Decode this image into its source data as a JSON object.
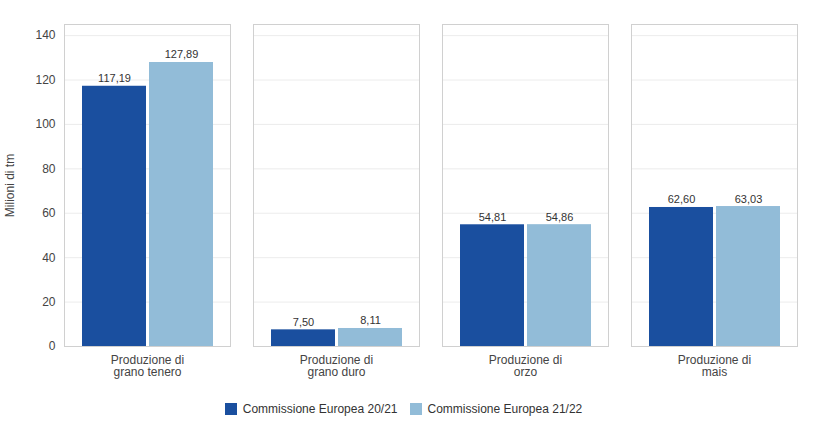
{
  "chart_data": {
    "type": "bar",
    "categories": [
      "Produzione di\ngrano tenero",
      "Produzione di\ngrano duro",
      "Produzione di\norzo",
      "Produzione di\nmais"
    ],
    "series": [
      {
        "name": "Commissione Europea 20/21",
        "color": "#1a4f9f",
        "values": [
          117.19,
          7.5,
          54.81,
          62.6
        ],
        "value_labels": [
          "117,19",
          "7,50",
          "54,81",
          "62,60"
        ]
      },
      {
        "name": "Commissione Europea 21/22",
        "color": "#92bcd8",
        "values": [
          127.89,
          8.11,
          54.86,
          63.03
        ],
        "value_labels": [
          "127,89",
          "8,11",
          "54,86",
          "63,03"
        ]
      }
    ],
    "ylabel": "Milioni di tm",
    "ylim": [
      0,
      145
    ],
    "yticks": [
      0,
      20,
      40,
      60,
      80,
      100,
      120,
      140
    ],
    "grid": true,
    "legend": "bottom",
    "data_labels": true
  }
}
